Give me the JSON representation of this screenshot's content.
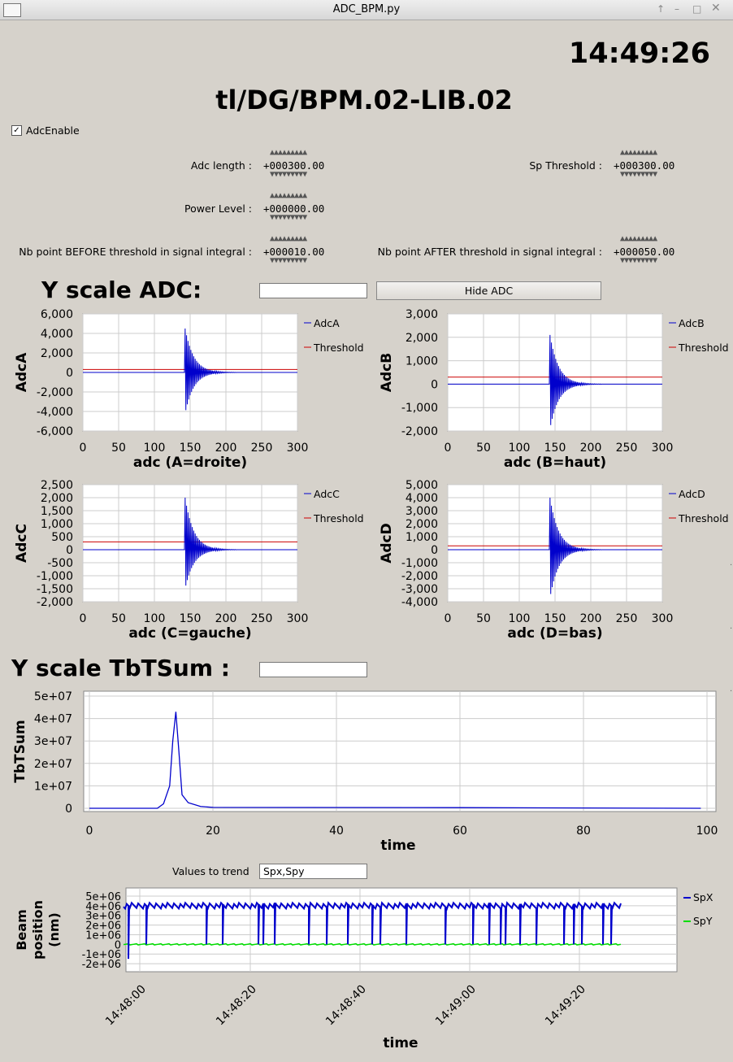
{
  "window": {
    "title": "ADC_BPM.py"
  },
  "clock": "14:49:26",
  "device": "tl/DG/BPM.02-LIB.02",
  "adc_enable": {
    "label": "AdcEnable",
    "checked": true
  },
  "params": {
    "adc_length": {
      "label": "Adc length :",
      "value": "+000300.00"
    },
    "sp_threshold": {
      "label": "Sp Threshold :",
      "value": "+000300.00"
    },
    "power_level": {
      "label": "Power Level :",
      "value": "+000000.00"
    },
    "nb_before": {
      "label": "Nb point BEFORE threshold in signal integral :",
      "value": "+000010.00"
    },
    "nb_after": {
      "label": "Nb point AFTER threshold in signal integral :",
      "value": "+000050.00"
    }
  },
  "yscale_adc": {
    "label": "Y scale ADC:",
    "value": ""
  },
  "hide_adc_button": "Hide ADC",
  "yscale_tbt": {
    "label": "Y scale TbTSum :",
    "value": ""
  },
  "trend": {
    "label": "Values to trend",
    "value": "Spx,Spy"
  },
  "colors": {
    "signal": "#0000cc",
    "threshold": "#cc0000",
    "spy": "#00dd00",
    "background": "#d6d2cb"
  },
  "chart_data": [
    {
      "type": "line",
      "ylabel": "AdcA",
      "xlabel": "adc  (A=droite)",
      "xlim": [
        0,
        300
      ],
      "ylim": [
        -6000,
        6000
      ],
      "xticks": [
        "0",
        "50",
        "100",
        "150",
        "200",
        "250",
        "300"
      ],
      "yticks": [
        "6,000",
        "4,000",
        "2,000",
        "0",
        "-2,000",
        "-4,000",
        "-6,000"
      ],
      "series": [
        {
          "name": "AdcA"
        },
        {
          "name": "Threshold",
          "value": 300
        }
      ],
      "peak_max": 4500,
      "peak_min": -4200
    },
    {
      "type": "line",
      "ylabel": "AdcB",
      "xlabel": "adc  (B=haut)",
      "xlim": [
        0,
        300
      ],
      "ylim": [
        -2000,
        3000
      ],
      "xticks": [
        "0",
        "50",
        "100",
        "150",
        "200",
        "250",
        "300"
      ],
      "yticks": [
        "3,000",
        "2,000",
        "1,000",
        "0",
        "-1,000",
        "-2,000"
      ],
      "series": [
        {
          "name": "AdcB"
        },
        {
          "name": "Threshold",
          "value": 300
        }
      ],
      "peak_max": 2100,
      "peak_min": -1900
    },
    {
      "type": "line",
      "ylabel": "AdcC",
      "xlabel": "adc  (C=gauche)",
      "xlim": [
        0,
        300
      ],
      "ylim": [
        -2000,
        2500
      ],
      "xticks": [
        "0",
        "50",
        "100",
        "150",
        "200",
        "250",
        "300"
      ],
      "yticks": [
        "2,500",
        "2,000",
        "1,500",
        "1,000",
        "500",
        "0",
        "-500",
        "-1,000",
        "-1,500",
        "-2,000"
      ],
      "series": [
        {
          "name": "AdcC"
        },
        {
          "name": "Threshold",
          "value": 300
        }
      ],
      "peak_max": 2000,
      "peak_min": -1500
    },
    {
      "type": "line",
      "ylabel": "AdcD",
      "xlabel": "adc  (D=bas)",
      "xlim": [
        0,
        300
      ],
      "ylim": [
        -4000,
        5000
      ],
      "xticks": [
        "0",
        "50",
        "100",
        "150",
        "200",
        "250",
        "300"
      ],
      "yticks": [
        "5,000",
        "4,000",
        "3,000",
        "2,000",
        "1,000",
        "0",
        "-1,000",
        "-2,000",
        "-3,000",
        "-4,000"
      ],
      "series": [
        {
          "name": "AdcD"
        },
        {
          "name": "Threshold",
          "value": 300
        }
      ],
      "peak_max": 4000,
      "peak_min": -3700
    },
    {
      "type": "line",
      "ylabel": "TbTSum",
      "xlabel": "time",
      "xlim": [
        0,
        100
      ],
      "ylim": [
        0,
        50000000
      ],
      "xticks": [
        "0",
        "20",
        "40",
        "60",
        "80",
        "100"
      ],
      "yticks": [
        "5e+07",
        "4e+07",
        "3e+07",
        "2e+07",
        "1e+07",
        "0"
      ],
      "series": [
        {
          "name": "TbTSum",
          "x": [
            0,
            11,
            12,
            13,
            13.5,
            14,
            14.5,
            15,
            16,
            18,
            20,
            60,
            99
          ],
          "y": [
            0,
            0,
            2000000,
            10000000,
            30000000,
            43000000,
            25000000,
            6000000,
            2500000,
            800000,
            400000,
            300000,
            0
          ]
        }
      ]
    },
    {
      "type": "line",
      "ylabel": "Beam position (nm)",
      "xlabel": "time",
      "xticks": [
        "14:48:00",
        "14:48:20",
        "14:48:40",
        "14:49:00",
        "14:49:20"
      ],
      "yticks": [
        "5e+06",
        "4e+06",
        "3e+06",
        "2e+06",
        "1e+06",
        "0",
        "-1e+06",
        "-2e+06"
      ],
      "ylim": [
        -2500000,
        5500000
      ],
      "series": [
        {
          "name": "SpX",
          "level": 4000000
        },
        {
          "name": "SpY",
          "level": 0
        }
      ]
    }
  ]
}
